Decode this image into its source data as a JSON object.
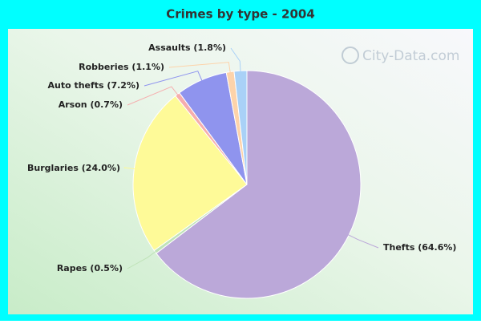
{
  "chart_data": {
    "type": "pie",
    "title": "Crimes by type - 2004",
    "categories": [
      "Thefts (64.6%)",
      "Rapes (0.5%)",
      "Burglaries (24.0%)",
      "Arson (0.7%)",
      "Auto thefts (7.2%)",
      "Robberies (1.1%)",
      "Assaults (1.8%)"
    ],
    "values": [
      64.6,
      0.5,
      24.0,
      0.7,
      7.2,
      1.1,
      1.8
    ],
    "colors": [
      "#bba8d9",
      "#bfe3b8",
      "#fefa98",
      "#f6adad",
      "#8f94ee",
      "#fdd3aa",
      "#a9d1f7"
    ],
    "watermark": "City-Data.com"
  }
}
